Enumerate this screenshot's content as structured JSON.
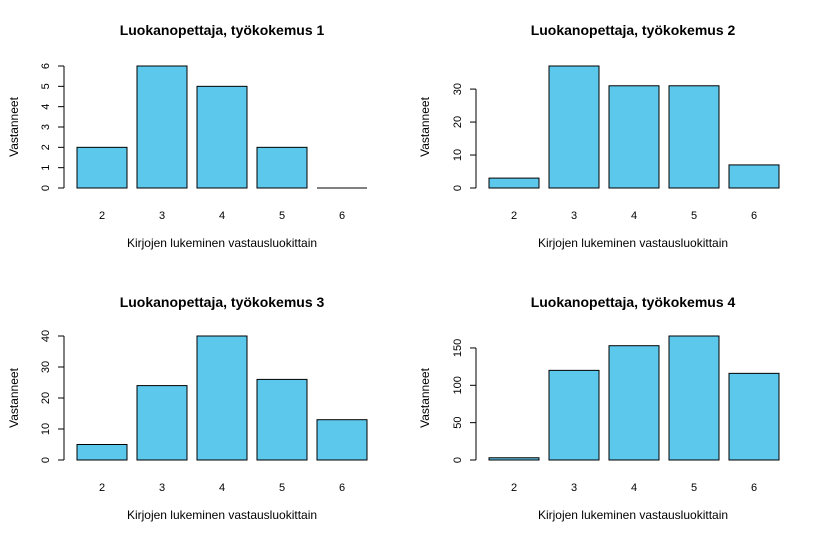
{
  "bar_color": "#5bc8ec",
  "chart_data": [
    {
      "type": "bar",
      "title": "Luokanopettaja, työkokemus 1",
      "xlabel": "Kirjojen lukeminen vastausluokittain",
      "ylabel": "Vastanneet",
      "categories": [
        "2",
        "3",
        "4",
        "5",
        "6"
      ],
      "values": [
        2,
        6,
        5,
        2,
        0
      ],
      "ylim": [
        0,
        6
      ],
      "yticks": [
        0,
        1,
        2,
        3,
        4,
        5,
        6
      ],
      "grid": false
    },
    {
      "type": "bar",
      "title": "Luokanopettaja, työkokemus 2",
      "xlabel": "Kirjojen lukeminen vastausluokittain",
      "ylabel": "Vastanneet",
      "categories": [
        "2",
        "3",
        "4",
        "5",
        "6"
      ],
      "values": [
        3,
        37,
        31,
        31,
        7
      ],
      "ylim": [
        0,
        37
      ],
      "yticks": [
        0,
        10,
        20,
        30
      ],
      "grid": false
    },
    {
      "type": "bar",
      "title": "Luokanopettaja, työkokemus 3",
      "xlabel": "Kirjojen lukeminen vastausluokittain",
      "ylabel": "Vastanneet",
      "categories": [
        "2",
        "3",
        "4",
        "5",
        "6"
      ],
      "values": [
        5,
        24,
        40,
        26,
        13
      ],
      "ylim": [
        0,
        40
      ],
      "yticks": [
        0,
        10,
        20,
        30,
        40
      ],
      "grid": false
    },
    {
      "type": "bar",
      "title": "Luokanopettaja, työkokemus 4",
      "xlabel": "Kirjojen lukeminen vastausluokittain",
      "ylabel": "Vastanneet",
      "categories": [
        "2",
        "3",
        "4",
        "5",
        "6"
      ],
      "values": [
        3,
        120,
        153,
        166,
        116
      ],
      "ylim": [
        0,
        166
      ],
      "yticks": [
        0,
        50,
        100,
        150
      ],
      "grid": false
    }
  ]
}
